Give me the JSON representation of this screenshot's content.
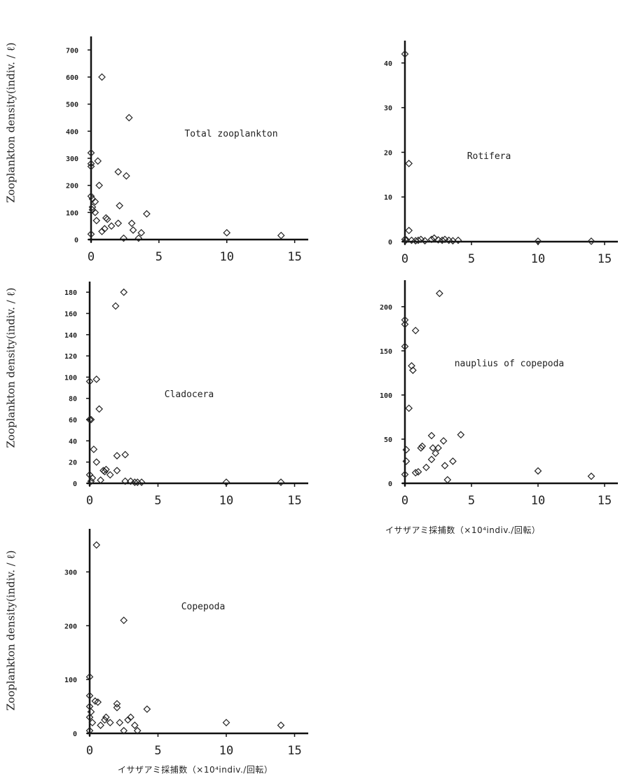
{
  "ylabel": "Zooplankton density(indiv. / ℓ)",
  "xlabel": "イサザアミ採捕数（×10⁴indiv./回転）",
  "chart_data": [
    {
      "type": "scatter",
      "title": "Total zooplankton",
      "xlabel": "",
      "ylabel": "Zooplankton density(indiv. / ℓ)",
      "xlim": [
        0,
        16
      ],
      "ylim": [
        0,
        750
      ],
      "xticks": [
        "0",
        "5",
        "10",
        "15"
      ],
      "yticks": [
        "0",
        "100",
        "200",
        "300",
        "400",
        "500",
        "600",
        "700"
      ],
      "points": [
        [
          0,
          320
        ],
        [
          0,
          280
        ],
        [
          0,
          270
        ],
        [
          0,
          160
        ],
        [
          0.1,
          150
        ],
        [
          0.1,
          120
        ],
        [
          0.1,
          110
        ],
        [
          0,
          20
        ],
        [
          0.3,
          100
        ],
        [
          0.3,
          140
        ],
        [
          0.4,
          70
        ],
        [
          0.5,
          290
        ],
        [
          0.6,
          200
        ],
        [
          0.8,
          600
        ],
        [
          0.8,
          30
        ],
        [
          1.0,
          40
        ],
        [
          1.1,
          80
        ],
        [
          1.2,
          75
        ],
        [
          1.5,
          50
        ],
        [
          2.0,
          250
        ],
        [
          2.1,
          125
        ],
        [
          2.0,
          60
        ],
        [
          2.4,
          5
        ],
        [
          2.6,
          235
        ],
        [
          2.8,
          450
        ],
        [
          3.0,
          60
        ],
        [
          3.1,
          35
        ],
        [
          3.5,
          5
        ],
        [
          3.7,
          25
        ],
        [
          4.1,
          95
        ],
        [
          10,
          25
        ],
        [
          14,
          15
        ]
      ]
    },
    {
      "type": "scatter",
      "title": "Rotifera",
      "xlabel": "",
      "ylabel": "",
      "xlim": [
        0,
        16
      ],
      "ylim": [
        0,
        45
      ],
      "xticks": [
        "0",
        "5",
        "10",
        "15"
      ],
      "yticks": [
        "0",
        "10",
        "20",
        "30",
        "40"
      ],
      "points": [
        [
          0,
          42
        ],
        [
          0.3,
          17.5
        ],
        [
          0.3,
          2.5
        ],
        [
          0,
          0.5
        ],
        [
          0.1,
          0.4
        ],
        [
          0.5,
          0.3
        ],
        [
          0.8,
          0.2
        ],
        [
          1.0,
          0.3
        ],
        [
          1.2,
          0.5
        ],
        [
          1.5,
          0.2
        ],
        [
          2.0,
          0.5
        ],
        [
          2.2,
          0.8
        ],
        [
          2.5,
          0.4
        ],
        [
          2.8,
          0.3
        ],
        [
          3.0,
          0.5
        ],
        [
          3.3,
          0.3
        ],
        [
          3.6,
          0.2
        ],
        [
          4.0,
          0.3
        ],
        [
          10,
          0.1
        ],
        [
          14,
          0.1
        ]
      ]
    },
    {
      "type": "scatter",
      "title": "Cladocera",
      "xlabel": "",
      "ylabel": "Zooplankton density(indiv. / ℓ)",
      "xlim": [
        0,
        16
      ],
      "ylim": [
        0,
        190
      ],
      "xticks": [
        "0",
        "5",
        "10",
        "15"
      ],
      "yticks": [
        "0",
        "20",
        "40",
        "60",
        "80",
        "100",
        "120",
        "140",
        "160",
        "180"
      ],
      "points": [
        [
          0,
          96
        ],
        [
          0,
          60
        ],
        [
          0.1,
          60
        ],
        [
          0,
          8
        ],
        [
          0.2,
          5
        ],
        [
          0.1,
          2
        ],
        [
          0.5,
          98
        ],
        [
          0.3,
          32
        ],
        [
          0.5,
          20
        ],
        [
          0.7,
          70
        ],
        [
          0.8,
          3
        ],
        [
          1.0,
          12
        ],
        [
          1.2,
          13
        ],
        [
          1.1,
          11
        ],
        [
          1.5,
          8
        ],
        [
          1.9,
          167
        ],
        [
          2.0,
          26
        ],
        [
          2.0,
          12
        ],
        [
          2.5,
          180
        ],
        [
          2.6,
          27
        ],
        [
          2.6,
          2
        ],
        [
          3.0,
          2
        ],
        [
          3.3,
          1
        ],
        [
          3.5,
          1
        ],
        [
          3.8,
          1
        ],
        [
          10,
          1
        ],
        [
          14,
          1
        ]
      ]
    },
    {
      "type": "scatter",
      "title": "nauplius of copepoda",
      "xlabel": "イサザアミ採捕数（×10⁴indiv./回転）",
      "ylabel": "",
      "xlim": [
        0,
        16
      ],
      "ylim": [
        0,
        230
      ],
      "xticks": [
        "0",
        "5",
        "10",
        "15"
      ],
      "yticks": [
        "0",
        "50",
        "100",
        "150",
        "200"
      ],
      "points": [
        [
          0,
          185
        ],
        [
          0,
          180
        ],
        [
          0,
          155
        ],
        [
          0.1,
          38
        ],
        [
          0.1,
          25
        ],
        [
          0,
          10
        ],
        [
          0.3,
          85
        ],
        [
          0.5,
          133
        ],
        [
          0.6,
          128
        ],
        [
          0.8,
          173
        ],
        [
          0.8,
          12
        ],
        [
          1.0,
          13
        ],
        [
          1.2,
          40
        ],
        [
          1.3,
          42
        ],
        [
          1.6,
          18
        ],
        [
          2.0,
          54
        ],
        [
          2.1,
          40
        ],
        [
          2.0,
          27
        ],
        [
          2.3,
          34
        ],
        [
          2.6,
          215
        ],
        [
          2.5,
          40
        ],
        [
          2.9,
          48
        ],
        [
          3.0,
          20
        ],
        [
          3.2,
          4
        ],
        [
          3.6,
          25
        ],
        [
          4.2,
          55
        ],
        [
          10,
          14
        ],
        [
          14,
          8
        ]
      ]
    },
    {
      "type": "scatter",
      "title": "Copepoda",
      "xlabel": "イサザアミ採捕数（×10⁴indiv./回転）",
      "ylabel": "Zooplankton density(indiv. / ℓ)",
      "xlim": [
        0,
        16
      ],
      "ylim": [
        0,
        380
      ],
      "xticks": [
        "0",
        "5",
        "10",
        "15"
      ],
      "yticks": [
        "0",
        "100",
        "200",
        "300"
      ],
      "points": [
        [
          0,
          105
        ],
        [
          0,
          70
        ],
        [
          0,
          50
        ],
        [
          0.1,
          40
        ],
        [
          0,
          30
        ],
        [
          0.2,
          20
        ],
        [
          0,
          5
        ],
        [
          0.5,
          350
        ],
        [
          0.4,
          60
        ],
        [
          0.6,
          58
        ],
        [
          0.8,
          15
        ],
        [
          1.1,
          25
        ],
        [
          1.2,
          30
        ],
        [
          1.5,
          20
        ],
        [
          2.0,
          55
        ],
        [
          2.0,
          48
        ],
        [
          2.2,
          20
        ],
        [
          2.5,
          210
        ],
        [
          2.5,
          5
        ],
        [
          2.8,
          25
        ],
        [
          3.0,
          30
        ],
        [
          3.3,
          15
        ],
        [
          3.5,
          5
        ],
        [
          4.2,
          45
        ],
        [
          10,
          20
        ],
        [
          14,
          15
        ]
      ]
    }
  ]
}
